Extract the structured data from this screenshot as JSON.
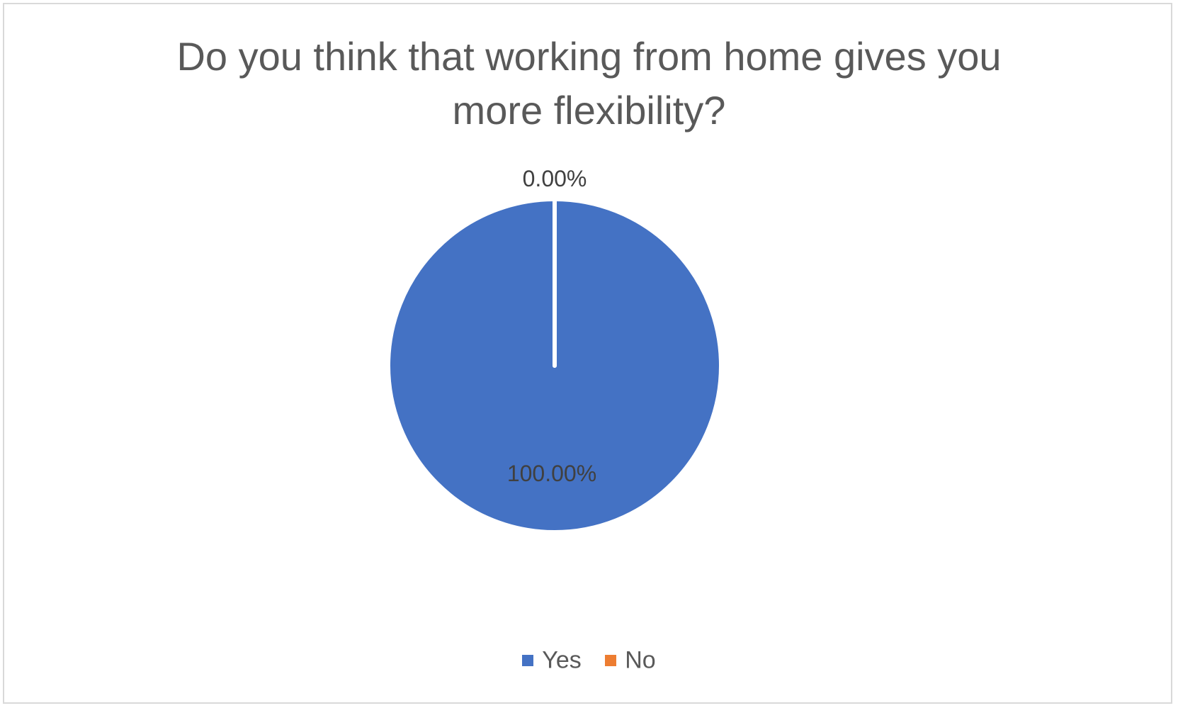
{
  "chart_data": {
    "type": "pie",
    "title_lines": [
      "Do you think that working from home gives you",
      "more flexibility?"
    ],
    "title": "Do you think that working from home gives you more flexibility?",
    "categories": [
      "Yes",
      "No"
    ],
    "values": [
      100.0,
      0.0
    ],
    "data_labels": [
      "100.00%",
      "0.00%"
    ],
    "colors": [
      "#4472c4",
      "#ed7d31"
    ],
    "legend_position": "bottom",
    "slice_border_color": "#ffffff"
  }
}
